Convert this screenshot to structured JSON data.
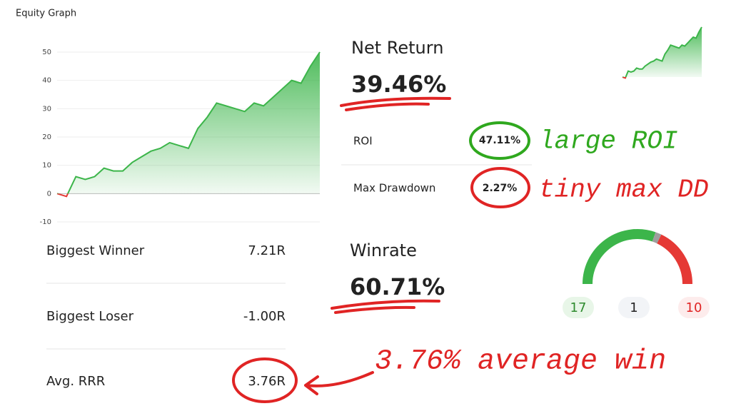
{
  "equity_graph": {
    "title": "Equity Graph",
    "type": "area",
    "x": [
      0,
      1,
      2,
      3,
      4,
      5,
      6,
      7,
      8,
      9,
      10,
      11,
      12,
      13,
      14,
      15,
      16,
      17,
      18,
      19,
      20,
      21,
      22,
      23,
      24,
      25,
      26,
      27,
      28
    ],
    "values": [
      0,
      -1,
      6,
      5,
      6,
      9,
      8,
      8,
      11,
      13,
      15,
      16,
      18,
      17,
      16,
      23,
      27,
      32,
      31,
      30,
      29,
      32,
      31,
      34,
      37,
      40,
      39,
      45,
      50
    ],
    "xlim": [
      0,
      28
    ],
    "ylim": [
      -10,
      50
    ],
    "yticks": [
      -10,
      0,
      10,
      20,
      30,
      40,
      50
    ],
    "color": "#3cb54a",
    "negative_color": "#e53935",
    "grid": true
  },
  "net_return": {
    "label": "Net Return",
    "value": "39.46%"
  },
  "stats": [
    {
      "label": "ROI",
      "value": "47.11%"
    },
    {
      "label": "Max Drawdown",
      "value": "2.27%"
    }
  ],
  "winrate": {
    "label": "Winrate",
    "value": "60.71%",
    "gauge": [
      {
        "value": 17,
        "color": "#3cb54a"
      },
      {
        "value": 1,
        "color": "#9e9e9e"
      },
      {
        "value": 10,
        "color": "#e53935"
      }
    ]
  },
  "trade_stats": [
    {
      "label": "Biggest Winner",
      "value": "7.21R"
    },
    {
      "label": "Biggest Loser",
      "value": "-1.00R"
    },
    {
      "label": "Avg. RRR",
      "value": "3.76R"
    }
  ],
  "annotations": [
    "large ROI",
    "tiny max DD",
    "3.76% average win"
  ]
}
